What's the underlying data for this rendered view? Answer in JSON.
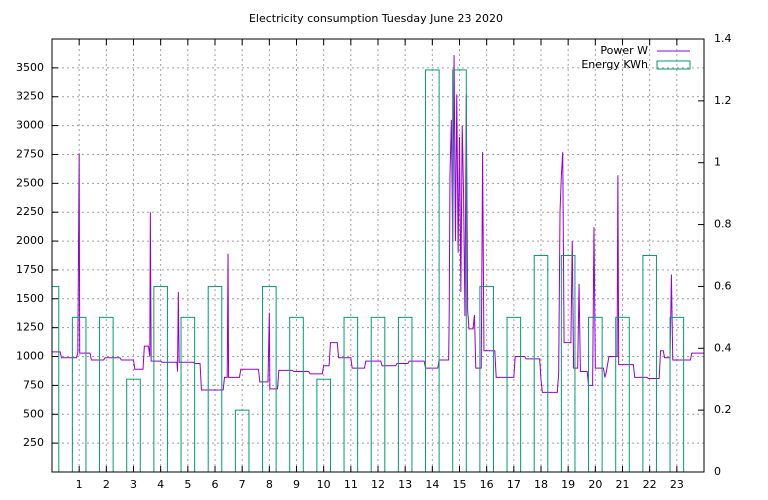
{
  "chart_data": {
    "type": "combo",
    "title": "Electricity consumption Tuesday June 23 2020",
    "xlim": [
      0,
      24
    ],
    "xticks": [
      1,
      2,
      3,
      4,
      5,
      6,
      7,
      8,
      9,
      10,
      11,
      12,
      13,
      14,
      15,
      16,
      17,
      18,
      19,
      20,
      21,
      22,
      23
    ],
    "ylim": [
      0,
      3750
    ],
    "yticks": [
      250,
      500,
      750,
      1000,
      1250,
      1500,
      1750,
      2000,
      2250,
      2500,
      2750,
      3000,
      3250,
      3500
    ],
    "y2lim": [
      0,
      1.4
    ],
    "y2ticks": [
      0,
      0.2,
      0.4,
      0.6,
      0.8,
      1,
      1.2,
      1.4
    ],
    "grid": true,
    "legend": "top-right",
    "series": [
      {
        "name": "Power W",
        "type": "line",
        "color": "#9400d3",
        "x": [
          0,
          0.3,
          0.35,
          0.9,
          0.95,
          1.0,
          1.02,
          1.4,
          1.45,
          1.9,
          1.95,
          2.5,
          2.55,
          3.0,
          3.05,
          3.35,
          3.4,
          3.55,
          3.6,
          3.62,
          3.65,
          4.0,
          4.05,
          4.6,
          4.62,
          4.65,
          4.68,
          5.2,
          5.25,
          5.45,
          5.5,
          6.3,
          6.35,
          6.45,
          6.48,
          6.5,
          6.9,
          6.95,
          7.6,
          7.65,
          7.95,
          8.0,
          8.02,
          8.3,
          8.35,
          8.85,
          8.9,
          9.45,
          9.5,
          9.95,
          10.0,
          10.2,
          10.25,
          10.5,
          10.55,
          11.0,
          11.05,
          11.5,
          11.55,
          12.1,
          12.15,
          12.65,
          12.7,
          13.1,
          13.15,
          13.7,
          13.75,
          14.2,
          14.25,
          14.6,
          14.62,
          14.65,
          14.7,
          14.75,
          14.8,
          14.85,
          14.9,
          14.95,
          15.0,
          15.05,
          15.1,
          15.15,
          15.2,
          15.25,
          15.3,
          15.35,
          15.5,
          15.55,
          15.6,
          15.8,
          15.85,
          15.9,
          16.3,
          16.35,
          17.0,
          17.05,
          17.4,
          17.45,
          17.95,
          18.0,
          18.05,
          18.6,
          18.65,
          18.7,
          18.75,
          18.8,
          18.85,
          19.1,
          19.15,
          19.2,
          19.35,
          19.4,
          19.45,
          19.7,
          19.75,
          19.9,
          19.95,
          20.0,
          20.3,
          20.35,
          20.4,
          20.5,
          20.8,
          20.83,
          20.86,
          21.4,
          21.45,
          21.9,
          21.95,
          22.35,
          22.4,
          22.5,
          22.55,
          22.75,
          22.8,
          22.85,
          23.5,
          23.55,
          24
        ],
        "values": [
          1040,
          1040,
          990,
          990,
          1030,
          2760,
          1030,
          1030,
          970,
          970,
          990,
          990,
          970,
          970,
          890,
          890,
          1090,
          1090,
          1000,
          2250,
          960,
          960,
          950,
          950,
          870,
          1560,
          950,
          950,
          940,
          940,
          710,
          710,
          820,
          820,
          1890,
          820,
          820,
          890,
          890,
          780,
          780,
          1380,
          720,
          720,
          880,
          880,
          870,
          870,
          850,
          850,
          920,
          920,
          1120,
          1120,
          990,
          990,
          900,
          900,
          960,
          960,
          920,
          920,
          940,
          940,
          960,
          960,
          900,
          900,
          970,
          970,
          1330,
          2570,
          3050,
          2000,
          3610,
          2000,
          3270,
          1900,
          2900,
          1560,
          3000,
          2400,
          1350,
          3270,
          1400,
          1240,
          1240,
          1360,
          900,
          900,
          2770,
          1050,
          1050,
          820,
          820,
          1000,
          1000,
          980,
          980,
          800,
          690,
          690,
          850,
          2250,
          2570,
          2770,
          1120,
          1120,
          2000,
          900,
          900,
          1630,
          870,
          870,
          750,
          750,
          2120,
          900,
          900,
          820,
          860,
          1000,
          1000,
          2570,
          930,
          930,
          820,
          820,
          810,
          810,
          1050,
          1050,
          990,
          990,
          1710,
          970,
          970,
          1030,
          1030
        ]
      },
      {
        "name": "Energy KWh",
        "type": "bar",
        "axis": "y2",
        "color": "#009e73",
        "x": [
          0,
          1,
          2,
          3,
          4,
          5,
          6,
          7,
          8,
          9,
          10,
          11,
          12,
          13,
          14,
          15,
          16,
          17,
          18,
          19,
          20,
          21,
          22,
          23
        ],
        "values": [
          0.6,
          0.5,
          0.5,
          0.3,
          0.6,
          0.5,
          0.6,
          0.2,
          0.6,
          0.5,
          0.3,
          0.5,
          0.5,
          0.5,
          1.3,
          1.3,
          0.6,
          0.5,
          0.7,
          0.7,
          0.5,
          0.5,
          0.7,
          0.5
        ]
      }
    ]
  }
}
